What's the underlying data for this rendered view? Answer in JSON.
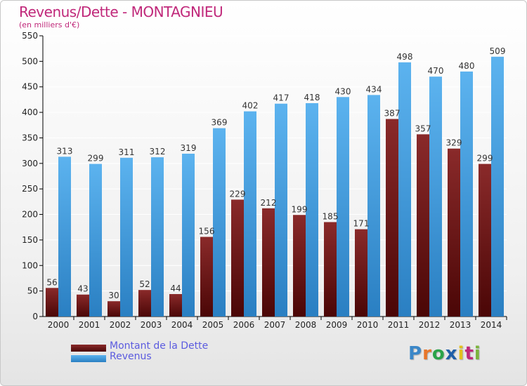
{
  "header": {
    "title": "Revenus/Dette - MONTAGNIEU",
    "subtitle": "(en milliers d'€)"
  },
  "logo": {
    "text": "Proxiti",
    "letter_colors": [
      "#3b87c8",
      "#e8762a",
      "#2aa34a",
      "#1f5fa8",
      "#e2c01e",
      "#c0287a",
      "#7bb43c"
    ]
  },
  "colors": {
    "debt": "#7a1c1c",
    "debt_dark": "#4a0606",
    "revenue": "#4ea6e6",
    "revenue_dark": "#2a7fc2",
    "title": "#c0287a",
    "legend_text": "#5b5bdf"
  },
  "chart_data": {
    "type": "bar",
    "title": "Revenus/Dette - MONTAGNIEU",
    "subtitle": "(en milliers d'€)",
    "categories": [
      "2000",
      "2001",
      "2002",
      "2003",
      "2004",
      "2005",
      "2006",
      "2007",
      "2008",
      "2009",
      "2010",
      "2011",
      "2012",
      "2013",
      "2014"
    ],
    "series": [
      {
        "name": "Montant de la Dette",
        "values": [
          56,
          43,
          30,
          52,
          44,
          156,
          229,
          212,
          199,
          185,
          171,
          387,
          357,
          329,
          299
        ]
      },
      {
        "name": "Revenus",
        "values": [
          313,
          299,
          311,
          312,
          319,
          369,
          402,
          417,
          418,
          430,
          434,
          498,
          470,
          480,
          509
        ]
      }
    ],
    "ylim": [
      0,
      550
    ],
    "yticks": [
      0,
      50,
      100,
      150,
      200,
      250,
      300,
      350,
      400,
      450,
      500,
      550
    ],
    "xlabel": "",
    "ylabel": "",
    "grid": true,
    "legend_position": "bottom-left"
  }
}
